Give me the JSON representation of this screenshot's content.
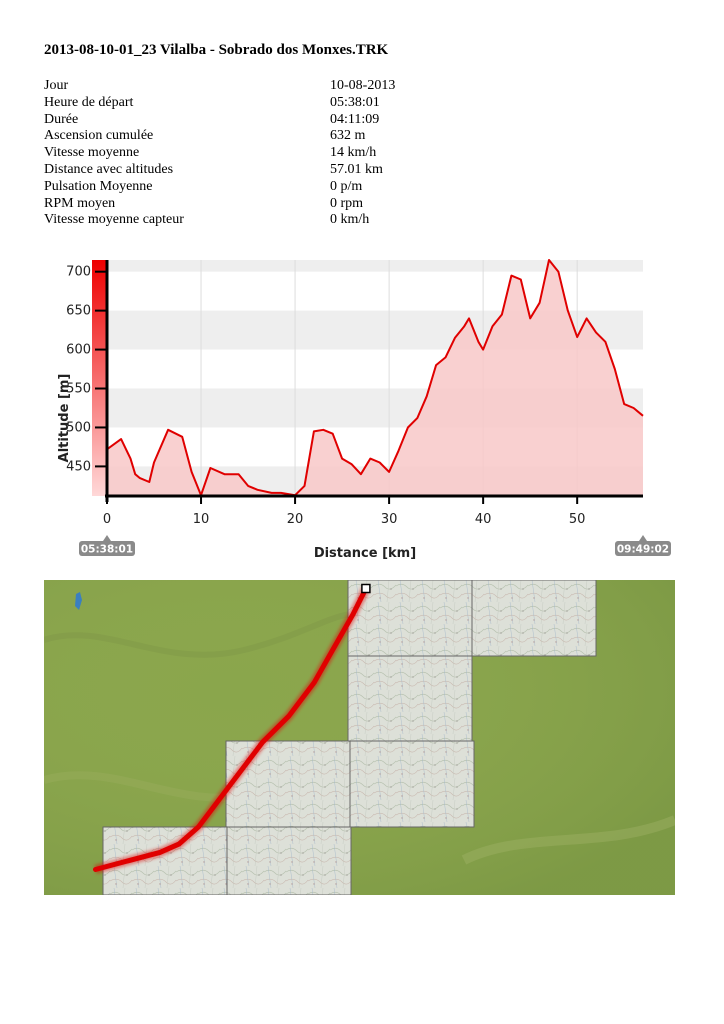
{
  "document": {
    "title": "2013-08-10-01_23 Vilalba - Sobrado dos Monxes.TRK"
  },
  "stats": [
    {
      "label": "Jour",
      "value": "10-08-2013"
    },
    {
      "label": "Heure de départ",
      "value": "05:38:01"
    },
    {
      "label": "Durée",
      "value": "04:11:09"
    },
    {
      "label": "Ascension cumulée",
      "value": "632 m"
    },
    {
      "label": "Vitesse moyenne",
      "value": "14 km/h"
    },
    {
      "label": "Distance avec altitudes",
      "value": "57.01 km"
    },
    {
      "label": "Pulsation Moyenne",
      "value": "0 p/m"
    },
    {
      "label": "RPM moyen",
      "value": "0 rpm"
    },
    {
      "label": "Vitesse moyenne capteur",
      "value": "0 km/h"
    }
  ],
  "chart_data": {
    "type": "area",
    "xlabel": "Distance [km]",
    "ylabel": "Altitude [m]",
    "xlim": [
      0,
      57
    ],
    "ylim": [
      412,
      715
    ],
    "xticks": [
      0,
      10,
      20,
      30,
      40,
      50
    ],
    "yticks": [
      450,
      500,
      550,
      600,
      650,
      700
    ],
    "grid": true,
    "start_time": "05:38:01",
    "end_time": "09:49:02",
    "colors": {
      "line": "#e00000",
      "fill": "#f8c8c8",
      "band": "#eeeeee"
    },
    "x": [
      0,
      1.5,
      2.5,
      3,
      3.5,
      4.5,
      5,
      6.5,
      8,
      9,
      10,
      11,
      12.5,
      14,
      15,
      16,
      17.5,
      18.5,
      20,
      21,
      22,
      23,
      24,
      25,
      26,
      27,
      28,
      29,
      30,
      31,
      32,
      33,
      34,
      35,
      36,
      37,
      38,
      38.5,
      39.5,
      40,
      41,
      42,
      43,
      44,
      45,
      46,
      47,
      48,
      49,
      50,
      51,
      52,
      53,
      54,
      55,
      56,
      57
    ],
    "y": [
      472,
      485,
      460,
      440,
      435,
      430,
      455,
      497,
      488,
      443,
      413,
      448,
      440,
      440,
      425,
      420,
      416,
      416,
      413,
      425,
      495,
      497,
      492,
      460,
      453,
      440,
      460,
      455,
      443,
      470,
      500,
      512,
      540,
      580,
      590,
      615,
      630,
      640,
      610,
      600,
      630,
      645,
      695,
      690,
      640,
      660,
      715,
      700,
      650,
      616,
      640,
      622,
      610,
      575,
      530,
      525,
      515
    ]
  },
  "map": {
    "route_color": "#e00000",
    "terrain_color": "#8aa64c",
    "route_lonlat": [
      [
        -7.68,
        43.29
      ],
      [
        -7.7,
        43.26
      ],
      [
        -7.73,
        43.22
      ],
      [
        -7.76,
        43.18
      ],
      [
        -7.8,
        43.14
      ],
      [
        -7.84,
        43.11
      ],
      [
        -7.86,
        43.09
      ],
      [
        -7.89,
        43.06
      ],
      [
        -7.92,
        43.03
      ],
      [
        -7.94,
        43.01
      ],
      [
        -7.97,
        42.99
      ],
      [
        -8.0,
        42.98
      ],
      [
        -8.05,
        42.97
      ],
      [
        -8.1,
        42.96
      ]
    ]
  }
}
